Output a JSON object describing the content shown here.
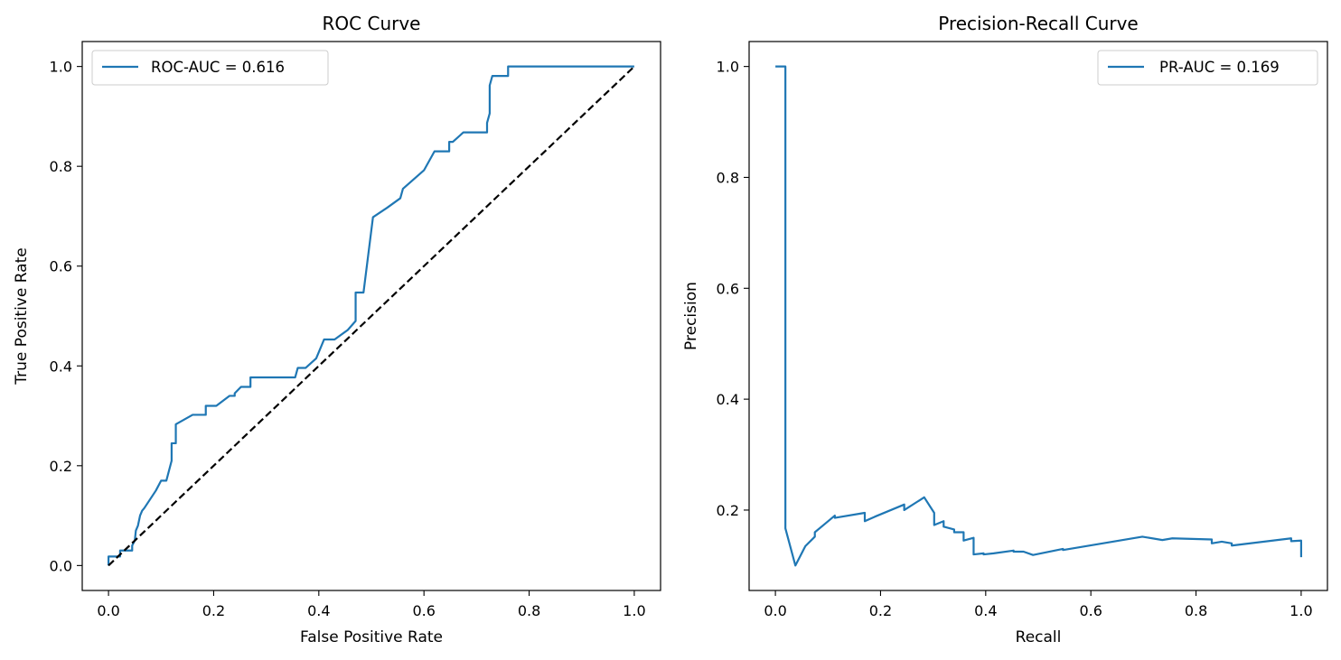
{
  "chart_data": [
    {
      "type": "line",
      "title": "ROC Curve",
      "xlabel": "False Positive Rate",
      "ylabel": "True Positive Rate",
      "xlim": [
        -0.05,
        1.05
      ],
      "ylim": [
        -0.05,
        1.05
      ],
      "xticks": [
        "0.0",
        "0.2",
        "0.4",
        "0.6",
        "0.8",
        "1.0"
      ],
      "yticks": [
        "0.0",
        "0.2",
        "0.4",
        "0.6",
        "0.8",
        "1.0"
      ],
      "grid": false,
      "legend_position": "top-left",
      "series": [
        {
          "name": "ROC-AUC = 0.616",
          "color": "#1f77b4",
          "style": "solid",
          "x": [
            0.0,
            0.0,
            0.0,
            0.022,
            0.022,
            0.045,
            0.045,
            0.05,
            0.052,
            0.056,
            0.06,
            0.064,
            0.068,
            0.09,
            0.1,
            0.11,
            0.12,
            0.12,
            0.128,
            0.128,
            0.16,
            0.185,
            0.185,
            0.205,
            0.23,
            0.24,
            0.24,
            0.252,
            0.27,
            0.27,
            0.355,
            0.36,
            0.372,
            0.375,
            0.395,
            0.41,
            0.43,
            0.455,
            0.47,
            0.47,
            0.48,
            0.485,
            0.503,
            0.53,
            0.555,
            0.56,
            0.6,
            0.62,
            0.648,
            0.648,
            0.655,
            0.675,
            0.7,
            0.72,
            0.72,
            0.725,
            0.725,
            0.73,
            0.74,
            0.76,
            0.76,
            0.8,
            1.0
          ],
          "y": [
            0.0,
            0.018,
            0.018,
            0.018,
            0.03,
            0.03,
            0.04,
            0.05,
            0.07,
            0.08,
            0.1,
            0.11,
            0.115,
            0.15,
            0.17,
            0.17,
            0.21,
            0.245,
            0.245,
            0.283,
            0.302,
            0.302,
            0.32,
            0.32,
            0.34,
            0.34,
            0.345,
            0.358,
            0.358,
            0.377,
            0.377,
            0.396,
            0.396,
            0.396,
            0.415,
            0.453,
            0.453,
            0.472,
            0.49,
            0.547,
            0.547,
            0.547,
            0.698,
            0.717,
            0.736,
            0.755,
            0.792,
            0.83,
            0.83,
            0.849,
            0.849,
            0.868,
            0.868,
            0.868,
            0.887,
            0.906,
            0.962,
            0.981,
            0.981,
            0.981,
            1.0,
            1.0,
            1.0
          ]
        },
        {
          "name": "",
          "color": "#000000",
          "style": "dashed",
          "x": [
            0.0,
            1.0
          ],
          "y": [
            0.0,
            1.0
          ]
        }
      ]
    },
    {
      "type": "line",
      "title": "Precision-Recall Curve",
      "xlabel": "Recall",
      "ylabel": "Precision",
      "xlim": [
        -0.05,
        1.05
      ],
      "ylim": [
        0.055,
        1.045
      ],
      "xticks": [
        "0.0",
        "0.2",
        "0.4",
        "0.6",
        "0.8",
        "1.0"
      ],
      "yticks": [
        "0.2",
        "0.4",
        "0.6",
        "0.8",
        "1.0"
      ],
      "grid": false,
      "legend_position": "top-right",
      "series": [
        {
          "name": "PR-AUC = 0.169",
          "color": "#1f77b4",
          "style": "solid",
          "x": [
            0.0,
            0.019,
            0.019,
            0.038,
            0.057,
            0.075,
            0.075,
            0.094,
            0.113,
            0.113,
            0.17,
            0.17,
            0.189,
            0.245,
            0.245,
            0.283,
            0.302,
            0.302,
            0.32,
            0.32,
            0.34,
            0.34,
            0.358,
            0.358,
            0.377,
            0.377,
            0.396,
            0.396,
            0.415,
            0.453,
            0.453,
            0.472,
            0.49,
            0.547,
            0.547,
            0.698,
            0.736,
            0.755,
            0.83,
            0.83,
            0.849,
            0.868,
            0.868,
            0.981,
            0.981,
            1.0,
            1.0
          ],
          "y": [
            1.0,
            1.0,
            0.167,
            0.1,
            0.135,
            0.152,
            0.16,
            0.175,
            0.19,
            0.186,
            0.195,
            0.18,
            0.188,
            0.21,
            0.2,
            0.223,
            0.195,
            0.173,
            0.18,
            0.17,
            0.165,
            0.16,
            0.16,
            0.145,
            0.15,
            0.12,
            0.122,
            0.12,
            0.122,
            0.127,
            0.125,
            0.125,
            0.119,
            0.13,
            0.128,
            0.152,
            0.146,
            0.149,
            0.147,
            0.14,
            0.143,
            0.14,
            0.136,
            0.149,
            0.144,
            0.145,
            0.115
          ]
        }
      ]
    }
  ]
}
